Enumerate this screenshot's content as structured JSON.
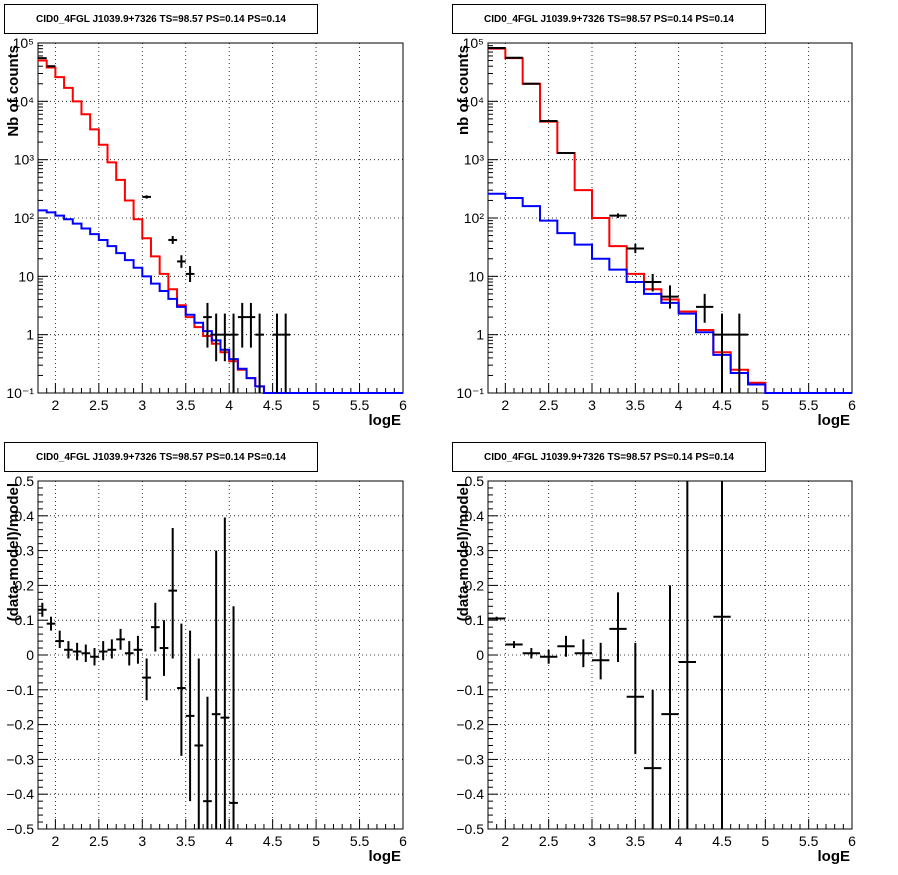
{
  "colors": {
    "data": "#000000",
    "total_model": "#ff0000",
    "source_model": "#0000ff",
    "grid": "#000000"
  },
  "chart_data": [
    {
      "type": "line",
      "title": "CID0_4FGL J1039.9+7326 TS=98.57 PS=0.14 PS=0.14",
      "xlabel": "logE",
      "ylabel": "Nb of counts",
      "xlim": [
        1.8,
        6.0
      ],
      "ylim": [
        0.1,
        100000
      ],
      "yscale": "log",
      "grid": true,
      "x_ticks": [
        "2",
        "2.5",
        "3",
        "3.5",
        "4",
        "4.5",
        "5",
        "5.5",
        "6"
      ],
      "y_ticks": [
        "10⁻¹",
        "1",
        "10",
        "10²",
        "10³",
        "10⁴",
        "10⁵"
      ],
      "bin_edges": [
        1.8,
        1.9,
        2.0,
        2.1,
        2.2,
        2.3,
        2.4,
        2.5,
        2.6,
        2.7,
        2.8,
        2.9,
        3.0,
        3.1,
        3.2,
        3.3,
        3.4,
        3.5,
        3.6,
        3.7,
        3.8,
        3.9,
        4.0,
        4.1,
        4.2,
        4.3,
        4.4,
        4.5,
        4.6,
        4.7,
        4.8,
        4.9,
        5.0,
        5.1,
        5.2,
        5.3,
        5.4,
        5.5,
        5.6,
        5.7,
        5.8,
        5.9,
        6.0
      ],
      "series": [
        {
          "name": "",
          "kind": "step",
          "color": "total_model",
          "values": [
            50000,
            38000,
            26000,
            17000,
            10000,
            6000,
            3300,
            1800,
            900,
            450,
            200,
            95,
            45,
            22,
            11,
            6,
            3.2,
            2.0,
            1.35,
            0.95,
            0.7,
            0.5,
            0.35,
            0.25,
            0.18,
            0.13,
            0.1,
            0.1,
            0.1,
            0.1,
            0.1,
            0.1,
            0.1,
            0.1,
            0.1,
            0.1,
            0.1,
            0.1,
            0.1,
            0.1,
            0.1,
            0.1
          ]
        },
        {
          "name": "",
          "kind": "step",
          "color": "source_model",
          "values": [
            135,
            125,
            110,
            95,
            80,
            66,
            53,
            42,
            33,
            25,
            19,
            14,
            10,
            7.5,
            5.6,
            4.1,
            3.0,
            2.2,
            1.6,
            1.15,
            0.8,
            0.55,
            0.38,
            0.26,
            0.18,
            0.13,
            0.1,
            0.1,
            0.1,
            0.1,
            0.1,
            0.1,
            0.1,
            0.1,
            0.1,
            0.1,
            0.1,
            0.1,
            0.1,
            0.1,
            0.1,
            0.1
          ]
        },
        {
          "name": "",
          "kind": "errorbar",
          "color": "data",
          "points": [
            {
              "x": 1.85,
              "y": 55000,
              "lo": 54000,
              "hi": 56000
            },
            {
              "x": 1.95,
              "y": 40000,
              "lo": 39500,
              "hi": 40500
            },
            {
              "x": 3.05,
              "y": 230,
              "lo": 215,
              "hi": 245
            },
            {
              "x": 3.35,
              "y": 42,
              "lo": 36,
              "hi": 49
            },
            {
              "x": 3.45,
              "y": 18,
              "lo": 14,
              "hi": 23
            },
            {
              "x": 3.55,
              "y": 11,
              "lo": 8,
              "hi": 15
            },
            {
              "x": 3.75,
              "y": 2,
              "lo": 0.6,
              "hi": 3.5
            },
            {
              "x": 3.85,
              "y": 1,
              "lo": 0.35,
              "hi": 2.3
            },
            {
              "x": 3.95,
              "y": 1,
              "lo": 0.35,
              "hi": 2.3
            },
            {
              "x": 4.05,
              "y": 1,
              "lo": 0.1,
              "hi": 2.3
            },
            {
              "x": 4.15,
              "y": 2,
              "lo": 0.6,
              "hi": 3.5
            },
            {
              "x": 4.25,
              "y": 2,
              "lo": 0.6,
              "hi": 3.5
            },
            {
              "x": 4.35,
              "y": 1,
              "lo": 0.1,
              "hi": 2.3
            },
            {
              "x": 4.55,
              "y": 1,
              "lo": 0.1,
              "hi": 2.3
            },
            {
              "x": 4.65,
              "y": 1,
              "lo": 0.1,
              "hi": 2.3
            }
          ]
        }
      ]
    },
    {
      "type": "line",
      "title": "CID0_4FGL J1039.9+7326 TS=98.57 PS=0.14 PS=0.14",
      "xlabel": "logE",
      "ylabel": "nb of counts",
      "xlim": [
        1.8,
        6.0
      ],
      "ylim": [
        0.1,
        100000
      ],
      "yscale": "log",
      "grid": true,
      "x_ticks": [
        "2",
        "2.5",
        "3",
        "3.5",
        "4",
        "4.5",
        "5",
        "5.5",
        "6"
      ],
      "y_ticks": [
        "10⁻¹",
        "1",
        "10",
        "10²",
        "10³",
        "10⁴",
        "10⁵"
      ],
      "bin_edges": [
        1.8,
        2.0,
        2.2,
        2.4,
        2.6,
        2.8,
        3.0,
        3.2,
        3.4,
        3.6,
        3.8,
        4.0,
        4.2,
        4.4,
        4.6,
        4.8,
        5.0,
        5.2,
        5.4,
        5.6,
        5.8,
        6.0
      ],
      "series": [
        {
          "name": "",
          "kind": "step",
          "color": "total_model",
          "values": [
            80000,
            55000,
            20000,
            4500,
            1300,
            300,
            100,
            33,
            11,
            6,
            4,
            2.5,
            1.2,
            0.5,
            0.25,
            0.15,
            0.1,
            0.1,
            0.1,
            0.1,
            0.1
          ]
        },
        {
          "name": "",
          "kind": "step",
          "color": "source_model",
          "values": [
            260,
            220,
            160,
            90,
            55,
            35,
            20,
            13,
            8,
            5,
            3.5,
            2.3,
            1.1,
            0.45,
            0.22,
            0.14,
            0.1,
            0.1,
            0.1,
            0.1,
            0.1
          ]
        },
        {
          "name": "",
          "kind": "errorbar",
          "color": "data",
          "points": [
            {
              "x": 1.9,
              "y": 82000,
              "lo": 81500,
              "hi": 82500
            },
            {
              "x": 2.1,
              "y": 56000,
              "lo": 55500,
              "hi": 56500
            },
            {
              "x": 2.3,
              "y": 20000,
              "lo": 19700,
              "hi": 20300
            },
            {
              "x": 2.5,
              "y": 4600,
              "lo": 4500,
              "hi": 4700
            },
            {
              "x": 2.7,
              "y": 1300,
              "lo": 1250,
              "hi": 1350
            },
            {
              "x": 3.3,
              "y": 110,
              "lo": 100,
              "hi": 120
            },
            {
              "x": 3.5,
              "y": 30,
              "lo": 25,
              "hi": 36
            },
            {
              "x": 3.7,
              "y": 8,
              "lo": 5.5,
              "hi": 11
            },
            {
              "x": 3.9,
              "y": 4.5,
              "lo": 2.8,
              "hi": 7
            },
            {
              "x": 4.3,
              "y": 3,
              "lo": 1.6,
              "hi": 5
            },
            {
              "x": 4.5,
              "y": 1,
              "lo": 0.1,
              "hi": 2.3
            },
            {
              "x": 4.7,
              "y": 1,
              "lo": 0.1,
              "hi": 2.3
            }
          ]
        }
      ]
    },
    {
      "type": "scatter",
      "title": "CID0_4FGL J1039.9+7326 TS=98.57 PS=0.14 PS=0.14",
      "xlabel": "logE",
      "ylabel": "(data-model)/model",
      "xlim": [
        1.8,
        6.0
      ],
      "ylim": [
        -0.5,
        0.5
      ],
      "grid": true,
      "x_ticks": [
        "2",
        "2.5",
        "3",
        "3.5",
        "4",
        "4.5",
        "5",
        "5.5",
        "6"
      ],
      "y_ticks": [
        "−0.5",
        "−0.4",
        "−0.3",
        "−0.2",
        "−0.1",
        "0",
        "0.1",
        "0.2",
        "0.3",
        "0.4",
        "0.5"
      ],
      "bin_halfwidth": 0.05,
      "series": [
        {
          "name": "",
          "kind": "errorbar",
          "color": "data",
          "points": [
            {
              "x": 1.85,
              "y": 0.13,
              "lo": 0.11,
              "hi": 0.15
            },
            {
              "x": 1.95,
              "y": 0.09,
              "lo": 0.07,
              "hi": 0.11
            },
            {
              "x": 2.05,
              "y": 0.04,
              "lo": 0.02,
              "hi": 0.07
            },
            {
              "x": 2.15,
              "y": 0.015,
              "lo": -0.01,
              "hi": 0.04
            },
            {
              "x": 2.25,
              "y": 0.01,
              "lo": -0.015,
              "hi": 0.035
            },
            {
              "x": 2.35,
              "y": 0.005,
              "lo": -0.02,
              "hi": 0.03
            },
            {
              "x": 2.45,
              "y": -0.005,
              "lo": -0.03,
              "hi": 0.02
            },
            {
              "x": 2.55,
              "y": 0.01,
              "lo": -0.015,
              "hi": 0.04
            },
            {
              "x": 2.65,
              "y": 0.015,
              "lo": -0.01,
              "hi": 0.045
            },
            {
              "x": 2.75,
              "y": 0.045,
              "lo": 0.015,
              "hi": 0.075
            },
            {
              "x": 2.85,
              "y": 0.005,
              "lo": -0.03,
              "hi": 0.04
            },
            {
              "x": 2.95,
              "y": 0.015,
              "lo": -0.025,
              "hi": 0.055
            },
            {
              "x": 3.05,
              "y": -0.065,
              "lo": -0.13,
              "hi": -0.01
            },
            {
              "x": 3.15,
              "y": 0.08,
              "lo": 0.01,
              "hi": 0.15
            },
            {
              "x": 3.25,
              "y": 0.02,
              "lo": -0.06,
              "hi": 0.1
            },
            {
              "x": 3.35,
              "y": 0.185,
              "lo": -0.01,
              "hi": 0.365
            },
            {
              "x": 3.45,
              "y": -0.095,
              "lo": -0.29,
              "hi": 0.09
            },
            {
              "x": 3.55,
              "y": -0.175,
              "lo": -0.42,
              "hi": 0.07
            },
            {
              "x": 3.65,
              "y": -0.26,
              "lo": -0.5,
              "hi": -0.01
            },
            {
              "x": 3.75,
              "y": -0.42,
              "lo": -0.5,
              "hi": -0.12
            },
            {
              "x": 3.85,
              "y": -0.17,
              "lo": -0.5,
              "hi": 0.3
            },
            {
              "x": 3.95,
              "y": -0.18,
              "lo": -0.5,
              "hi": 0.395
            },
            {
              "x": 4.05,
              "y": -0.425,
              "lo": -0.5,
              "hi": 0.14
            }
          ]
        }
      ]
    },
    {
      "type": "scatter",
      "title": "CID0_4FGL J1039.9+7326 TS=98.57 PS=0.14 PS=0.14",
      "xlabel": "logE",
      "ylabel": "(data-model)/model",
      "xlim": [
        1.8,
        6.0
      ],
      "ylim": [
        -0.5,
        0.5
      ],
      "grid": true,
      "x_ticks": [
        "2",
        "2.5",
        "3",
        "3.5",
        "4",
        "4.5",
        "5",
        "5.5",
        "6"
      ],
      "y_ticks": [
        "−0.5",
        "−0.4",
        "−0.3",
        "−0.2",
        "−0.1",
        "0",
        "0.1",
        "0.2",
        "0.3",
        "0.4",
        "0.5"
      ],
      "bin_halfwidth": 0.1,
      "series": [
        {
          "name": "",
          "kind": "errorbar",
          "color": "data",
          "points": [
            {
              "x": 1.9,
              "y": 0.105,
              "lo": 0.1,
              "hi": 0.11
            },
            {
              "x": 2.1,
              "y": 0.03,
              "lo": 0.02,
              "hi": 0.04
            },
            {
              "x": 2.3,
              "y": 0.005,
              "lo": -0.01,
              "hi": 0.02
            },
            {
              "x": 2.5,
              "y": -0.005,
              "lo": -0.025,
              "hi": 0.015
            },
            {
              "x": 2.7,
              "y": 0.025,
              "lo": -0.005,
              "hi": 0.055
            },
            {
              "x": 2.9,
              "y": 0.005,
              "lo": -0.035,
              "hi": 0.045
            },
            {
              "x": 3.1,
              "y": -0.015,
              "lo": -0.07,
              "hi": 0.035
            },
            {
              "x": 3.3,
              "y": 0.075,
              "lo": -0.02,
              "hi": 0.18
            },
            {
              "x": 3.5,
              "y": -0.12,
              "lo": -0.285,
              "hi": 0.035
            },
            {
              "x": 3.7,
              "y": -0.325,
              "lo": -0.5,
              "hi": -0.1
            },
            {
              "x": 3.9,
              "y": -0.17,
              "lo": -0.5,
              "hi": 0.2
            },
            {
              "x": 4.1,
              "y": -0.02,
              "lo": -0.5,
              "hi": 0.5
            },
            {
              "x": 4.5,
              "y": 0.11,
              "lo": -0.5,
              "hi": 0.5
            }
          ]
        }
      ]
    }
  ]
}
